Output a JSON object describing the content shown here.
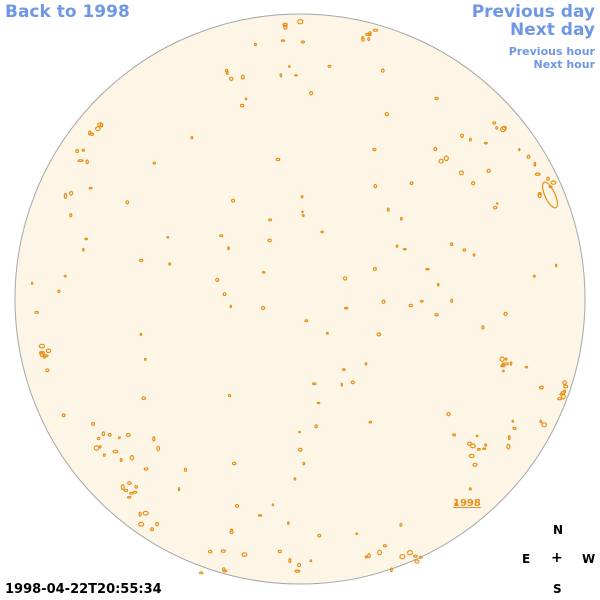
{
  "navigation": {
    "back_to_year": "Back to 1998",
    "previous_day": "Previous day",
    "next_day": "Next day",
    "previous_hour": "Previous hour",
    "next_hour": "Next hour"
  },
  "year_link": "1998",
  "timestamp": "1998-04-22T20:55:34",
  "compass": {
    "north": "N",
    "east": "E",
    "center": "+",
    "west": "W",
    "south": "S"
  },
  "colors": {
    "disk_fill": "#fdf6e6",
    "disk_edge": "#a7a7a7",
    "region_contour": "#e8901a",
    "nav_link": "#6f97e6"
  }
}
